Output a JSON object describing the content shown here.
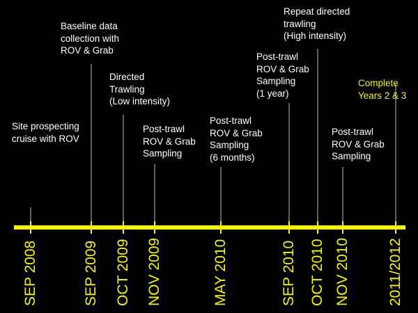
{
  "colors": {
    "background": "#000000",
    "axis": "#f5f500",
    "text": "#ffffff",
    "highlight_text": "#f5f500",
    "tick": "#bfbfbf"
  },
  "events": [
    {
      "date": "SEP 2008",
      "lines": [
        "Site prospecting",
        "cruise with ROV"
      ],
      "highlight": false
    },
    {
      "date": "SEP 2009",
      "lines": [
        "Baseline data",
        "collection with",
        "ROV & Grab"
      ],
      "highlight": false
    },
    {
      "date": "OCT 2009",
      "lines": [
        "Directed",
        "Trawling",
        "(Low intensity)"
      ],
      "highlight": false
    },
    {
      "date": "NOV 2009",
      "lines": [
        "Post-trawl",
        "ROV & Grab",
        "Sampling"
      ],
      "highlight": false
    },
    {
      "date": "MAY 2010",
      "lines": [
        "Post-trawl",
        "ROV & Grab",
        "Sampling",
        "(6 months)"
      ],
      "highlight": false
    },
    {
      "date": "SEP 2010",
      "lines": [
        "Post-trawl",
        "ROV & Grab",
        "Sampling",
        "(1 year)"
      ],
      "highlight": false
    },
    {
      "date": "OCT 2010",
      "lines": [
        "Repeat directed",
        "trawling",
        "(High intensity)"
      ],
      "highlight": false
    },
    {
      "date": "NOV 2010",
      "lines": [
        "Post-trawl",
        "ROV & Grab",
        "Sampling"
      ],
      "highlight": false
    },
    {
      "date": "2011/2012",
      "lines": [
        "Complete",
        "Years 2 & 3"
      ],
      "highlight": true
    }
  ]
}
